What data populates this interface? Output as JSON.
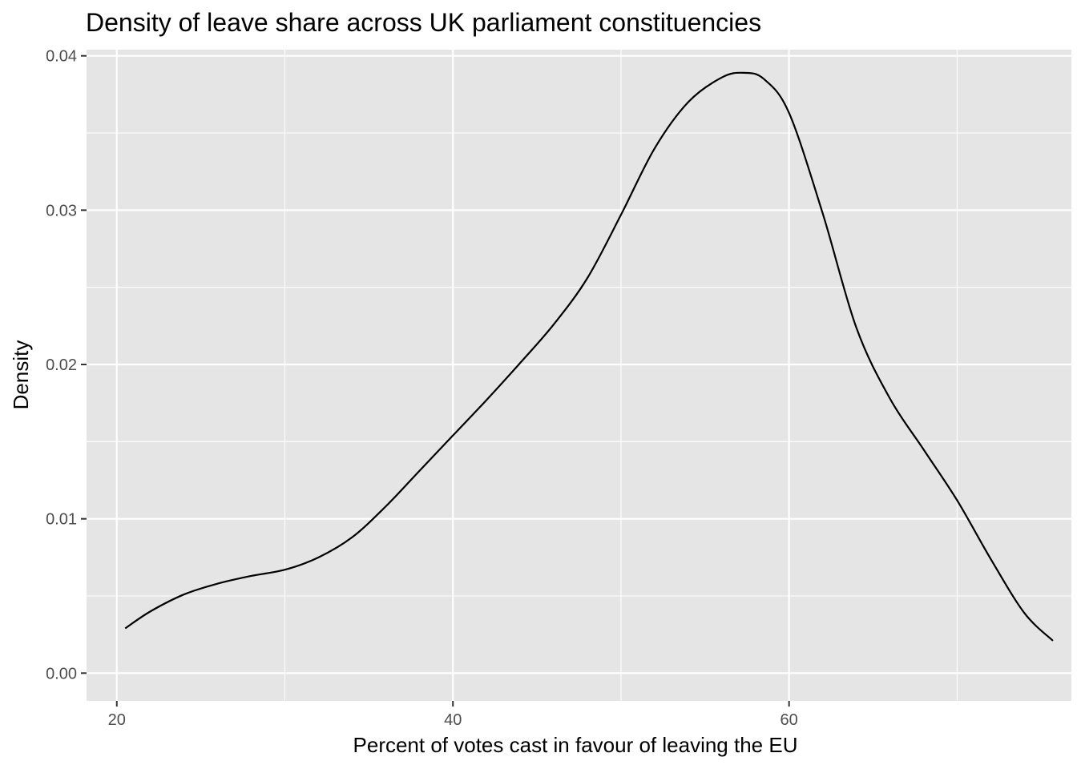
{
  "chart_data": {
    "type": "line",
    "title": "Density of leave share across UK parliament constituencies",
    "xlabel": "Percent of votes cast in favour of leaving the EU",
    "ylabel": "Density",
    "xlim": [
      18.2,
      76.8
    ],
    "ylim": [
      -0.0018,
      0.0404
    ],
    "x_ticks": [
      20,
      40,
      60
    ],
    "x_tick_labels": [
      "20",
      "40",
      "60"
    ],
    "y_ticks": [
      0.0,
      0.01,
      0.02,
      0.03,
      0.04
    ],
    "y_tick_labels": [
      "0.00",
      "0.01",
      "0.02",
      "0.03",
      "0.04"
    ],
    "x_minor_ticks": [
      30,
      50,
      70
    ],
    "y_minor_ticks": [
      0.005,
      0.015,
      0.025,
      0.035
    ],
    "grid": true,
    "background": "#e5e5e5",
    "grid_color": "#ffffff",
    "line_color": "#000000",
    "series": [
      {
        "x": [
          20.5,
          22,
          24,
          26,
          28,
          30,
          32,
          34,
          36,
          38,
          40,
          42,
          44,
          46,
          48,
          50,
          52,
          54,
          56,
          57.3,
          58.5,
          60,
          62,
          64,
          66,
          68,
          70,
          72,
          74,
          75.7
        ],
        "y": [
          0.0029,
          0.004,
          0.0051,
          0.0058,
          0.0063,
          0.0067,
          0.0075,
          0.0088,
          0.0108,
          0.0131,
          0.0154,
          0.0177,
          0.0201,
          0.0226,
          0.0256,
          0.0297,
          0.034,
          0.037,
          0.0386,
          0.0389,
          0.0385,
          0.0363,
          0.0298,
          0.0224,
          0.0178,
          0.0145,
          0.0112,
          0.0074,
          0.0039,
          0.0021
        ]
      }
    ]
  }
}
